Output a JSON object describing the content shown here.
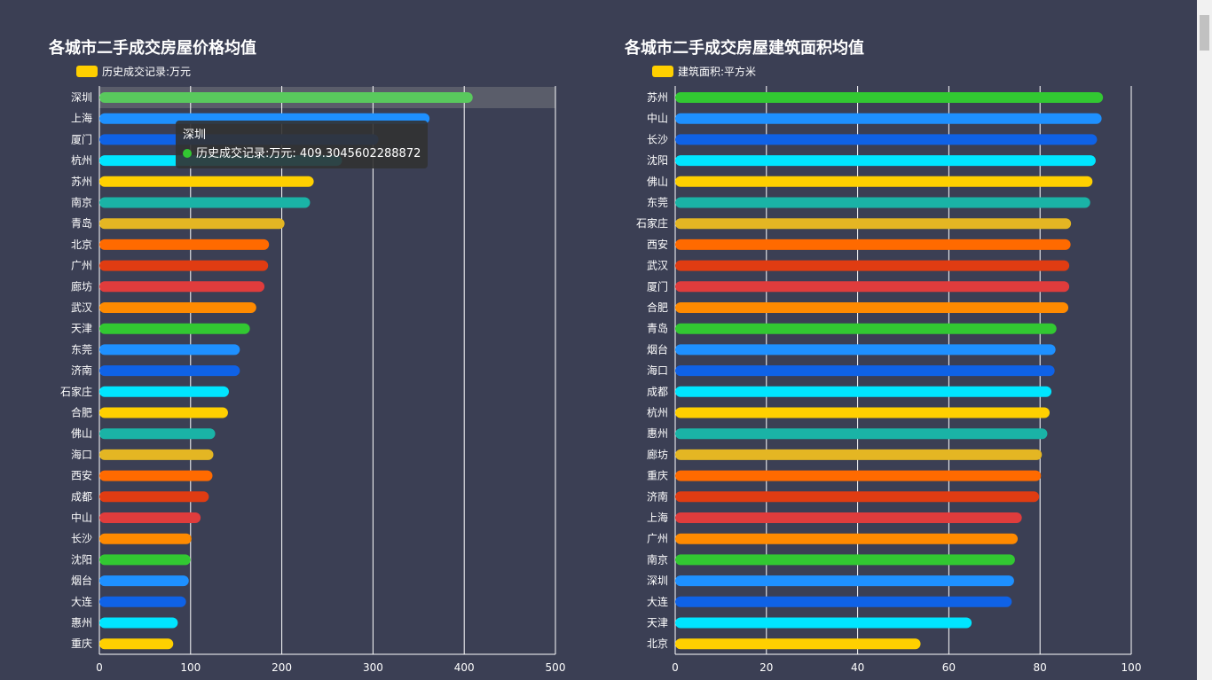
{
  "colors": {
    "background": "#3b3f54",
    "palette": [
      "#59c95d",
      "#1e90ff",
      "#0f62e6",
      "#00e5ff",
      "#ffd000",
      "#1ab3a6",
      "#e4b623",
      "#ff6a00",
      "#e03c12",
      "#e03c3c",
      "#ff8a00",
      "#32c832"
    ],
    "legend": "#ffd000"
  },
  "chart_data": [
    {
      "type": "bar",
      "orientation": "horizontal",
      "title": "各城市二手成交房屋价格均值",
      "legend": "历史成交记录:万元",
      "legend_placement": "top-left",
      "categories": [
        "深圳",
        "上海",
        "厦门",
        "杭州",
        "苏州",
        "南京",
        "青岛",
        "北京",
        "广州",
        "廊坊",
        "武汉",
        "天津",
        "东莞",
        "济南",
        "石家庄",
        "合肥",
        "佛山",
        "海口",
        "西安",
        "成都",
        "中山",
        "长沙",
        "沈阳",
        "烟台",
        "大连",
        "惠州",
        "重庆"
      ],
      "values": [
        409.3045602288872,
        362,
        306,
        266,
        235,
        231,
        203,
        186,
        185,
        181,
        172,
        165,
        154,
        154,
        142,
        141,
        127,
        125,
        124,
        120,
        111,
        101,
        100,
        98,
        95,
        86,
        81
      ],
      "xlim": [
        0,
        500
      ],
      "xticks": [
        0,
        100,
        200,
        300,
        400,
        500
      ],
      "grid": true,
      "colors": [
        "#59c95d",
        "#1e90ff",
        "#0f62e6",
        "#00e5ff",
        "#ffd000",
        "#1ab3a6",
        "#e4b623",
        "#ff6a00",
        "#e03c12",
        "#e03c3c",
        "#ff8a00",
        "#32c832",
        "#1e90ff",
        "#0f62e6",
        "#00e5ff",
        "#ffd000",
        "#1ab3a6",
        "#e4b623",
        "#ff6a00",
        "#e03c12",
        "#e03c3c",
        "#ff8a00",
        "#32c832",
        "#1e90ff",
        "#0f62e6",
        "#00e5ff",
        "#ffd000"
      ],
      "highlighted": "深圳"
    },
    {
      "type": "bar",
      "orientation": "horizontal",
      "title": "各城市二手成交房屋建筑面积均值",
      "legend": "建筑面积:平方米",
      "legend_placement": "top-left",
      "categories": [
        "苏州",
        "中山",
        "长沙",
        "沈阳",
        "佛山",
        "东莞",
        "石家庄",
        "西安",
        "武汉",
        "厦门",
        "合肥",
        "青岛",
        "烟台",
        "海口",
        "成都",
        "杭州",
        "惠州",
        "廊坊",
        "重庆",
        "济南",
        "上海",
        "广州",
        "南京",
        "深圳",
        "大连",
        "天津",
        "北京"
      ],
      "values": [
        93.8,
        93.5,
        92.5,
        92.2,
        91.5,
        91,
        86.8,
        86.7,
        86.4,
        86.4,
        86.2,
        83.6,
        83.4,
        83.2,
        82.5,
        82.1,
        81.6,
        80.4,
        80.2,
        79.8,
        76,
        75.1,
        74.5,
        74.3,
        73.8,
        65,
        53.8
      ],
      "xlim": [
        0,
        100
      ],
      "xticks": [
        0,
        20,
        40,
        60,
        80,
        100
      ],
      "grid": true,
      "colors": [
        "#32c832",
        "#1e90ff",
        "#0f62e6",
        "#00e5ff",
        "#ffd000",
        "#1ab3a6",
        "#e4b623",
        "#ff6a00",
        "#e03c12",
        "#e03c3c",
        "#ff8a00",
        "#32c832",
        "#1e90ff",
        "#0f62e6",
        "#00e5ff",
        "#ffd000",
        "#1ab3a6",
        "#e4b623",
        "#ff6a00",
        "#e03c12",
        "#e03c3c",
        "#ff8a00",
        "#32c832",
        "#1e90ff",
        "#0f62e6",
        "#00e5ff",
        "#ffd000"
      ]
    }
  ],
  "tooltip": {
    "title": "深圳",
    "series_label": "历史成交记录:万元",
    "value": "409.3045602288872"
  }
}
